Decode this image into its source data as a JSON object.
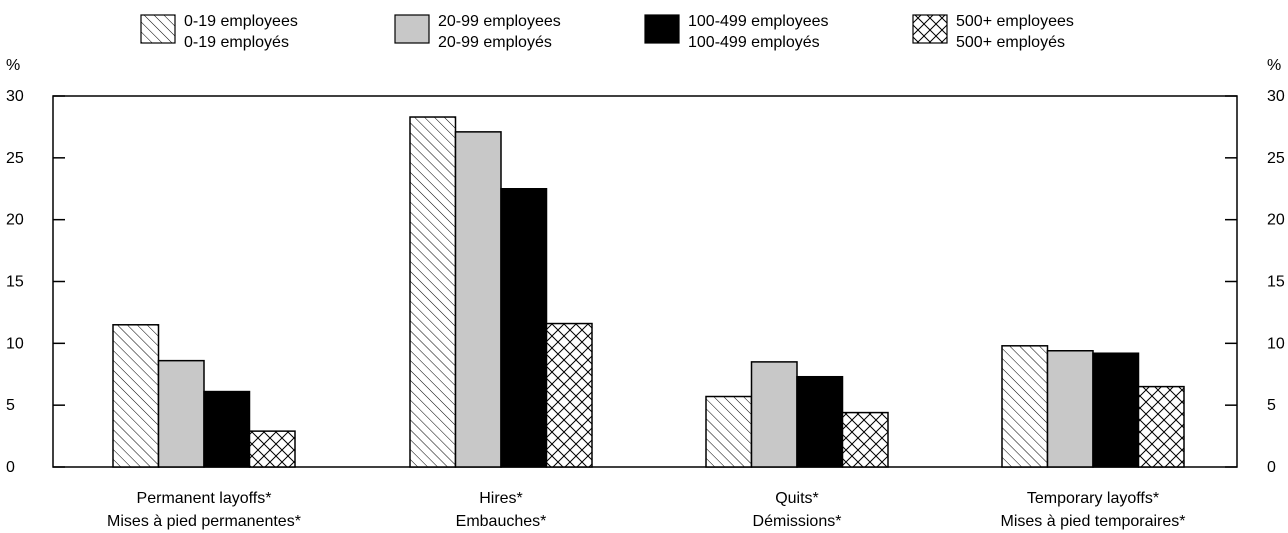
{
  "chart_data": {
    "type": "bar",
    "y_unit": "%",
    "ylim": [
      0,
      30
    ],
    "yticks": [
      "0",
      "5",
      "10",
      "15",
      "20",
      "25",
      "30"
    ],
    "grid": false,
    "legend_position": "top",
    "categories": [
      {
        "line1": "Permanent layoffs*",
        "line2": "Mises à pied permanentes*"
      },
      {
        "line1": "Hires*",
        "line2": "Embauches*"
      },
      {
        "line1": "Quits*",
        "line2": "Démissions*"
      },
      {
        "line1": "Temporary layoffs*",
        "line2": "Mises à pied temporaires*"
      }
    ],
    "series": [
      {
        "name_en": "0-19 employees",
        "name_fr": "0-19 employés",
        "pattern": "diagonal-hatch",
        "values": [
          11.5,
          28.3,
          5.7,
          9.8
        ]
      },
      {
        "name_en": "20-99 employees",
        "name_fr": "20-99 employés",
        "pattern": "light-gray",
        "color": "#c8c8c8",
        "values": [
          8.6,
          27.1,
          8.5,
          9.4
        ]
      },
      {
        "name_en": "100-499 employees",
        "name_fr": "100-499 employés",
        "pattern": "solid-black",
        "color": "#000000",
        "values": [
          6.1,
          22.5,
          7.3,
          9.2
        ]
      },
      {
        "name_en": "500+ employees",
        "name_fr": "500+ employés",
        "pattern": "cross-hatch",
        "values": [
          2.9,
          11.6,
          4.4,
          6.5
        ]
      }
    ]
  }
}
